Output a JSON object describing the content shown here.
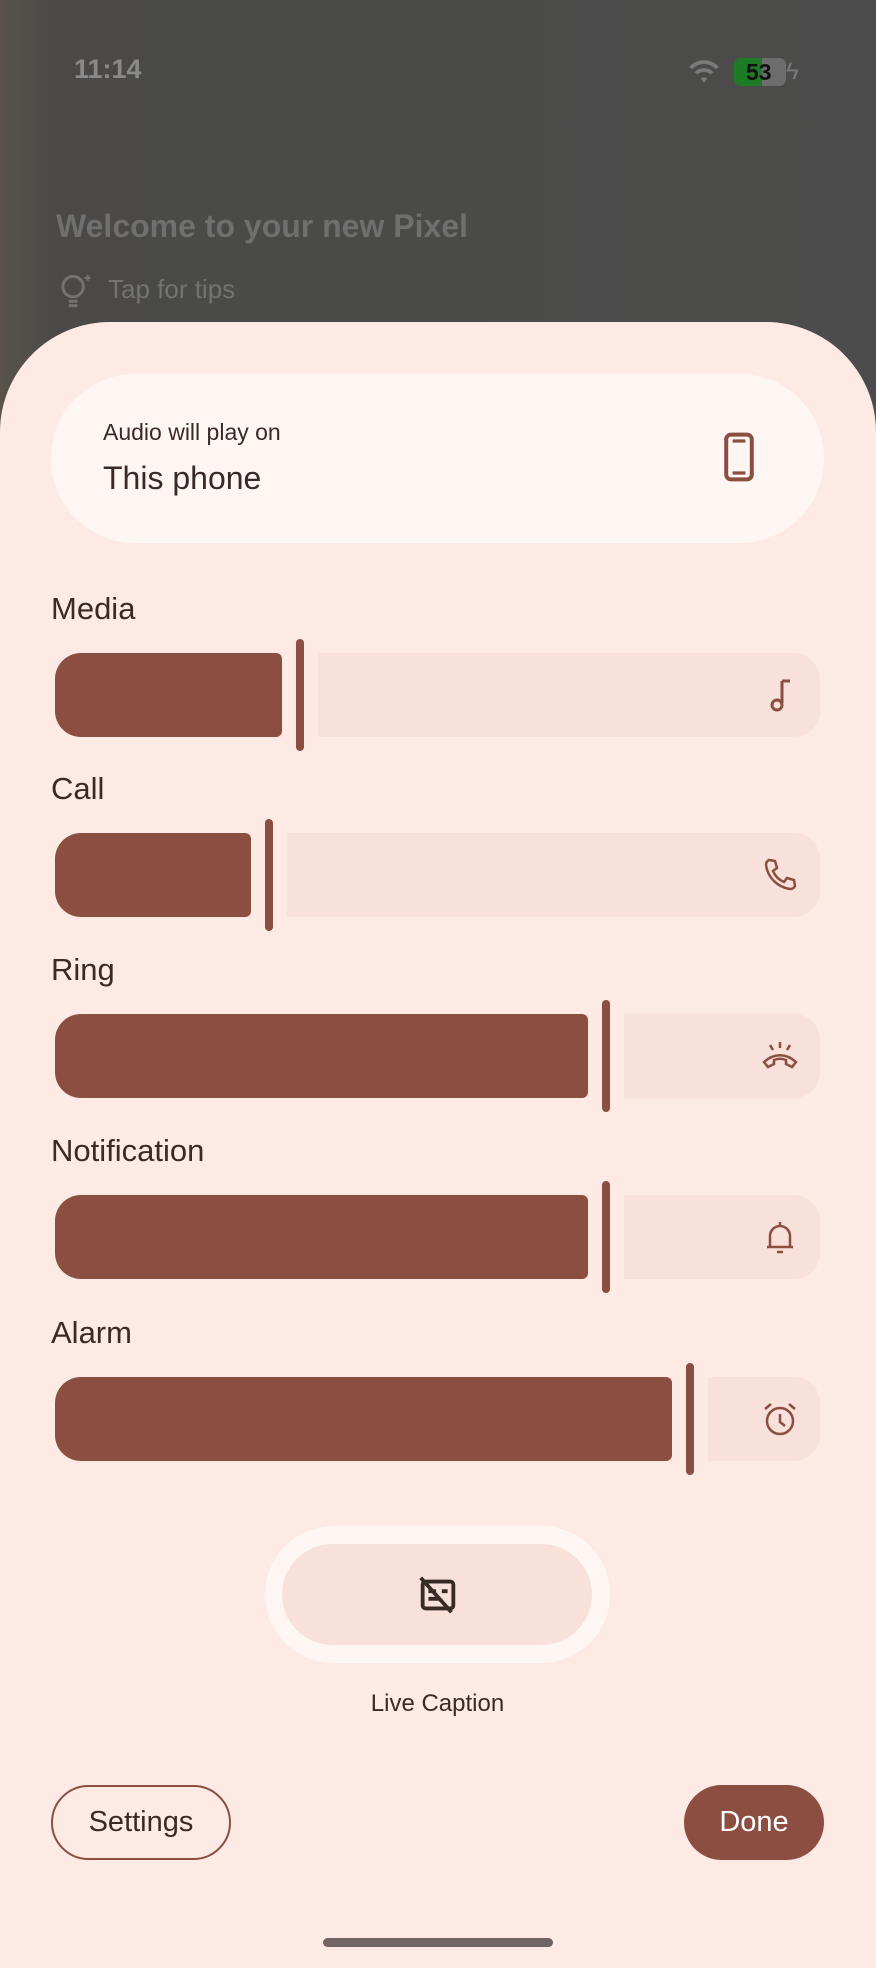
{
  "status_bar": {
    "time": "11:14",
    "battery": "53",
    "icons": [
      "wifi-icon",
      "battery-icon",
      "charging-icon"
    ]
  },
  "background": {
    "title": "Welcome to your new Pixel",
    "tips": "Tap for tips"
  },
  "output": {
    "caption": "Audio will play on",
    "device": "This phone",
    "icon": "phone-icon"
  },
  "sliders": [
    {
      "label": "Media",
      "value": 0.32,
      "icon": "music-note-icon"
    },
    {
      "label": "Call",
      "value": 0.28,
      "icon": "phone-call-icon"
    },
    {
      "label": "Ring",
      "value": 0.72,
      "icon": "ring-icon"
    },
    {
      "label": "Notification",
      "value": 0.72,
      "icon": "bell-icon"
    },
    {
      "label": "Alarm",
      "value": 0.83,
      "icon": "alarm-icon"
    }
  ],
  "live_caption": {
    "label": "Live Caption",
    "icon": "caption-off-icon"
  },
  "buttons": {
    "settings": "Settings",
    "done": "Done"
  },
  "colors": {
    "accent": "#8b4e40",
    "track": "#f8e1db",
    "sheet": "#feeae4"
  }
}
